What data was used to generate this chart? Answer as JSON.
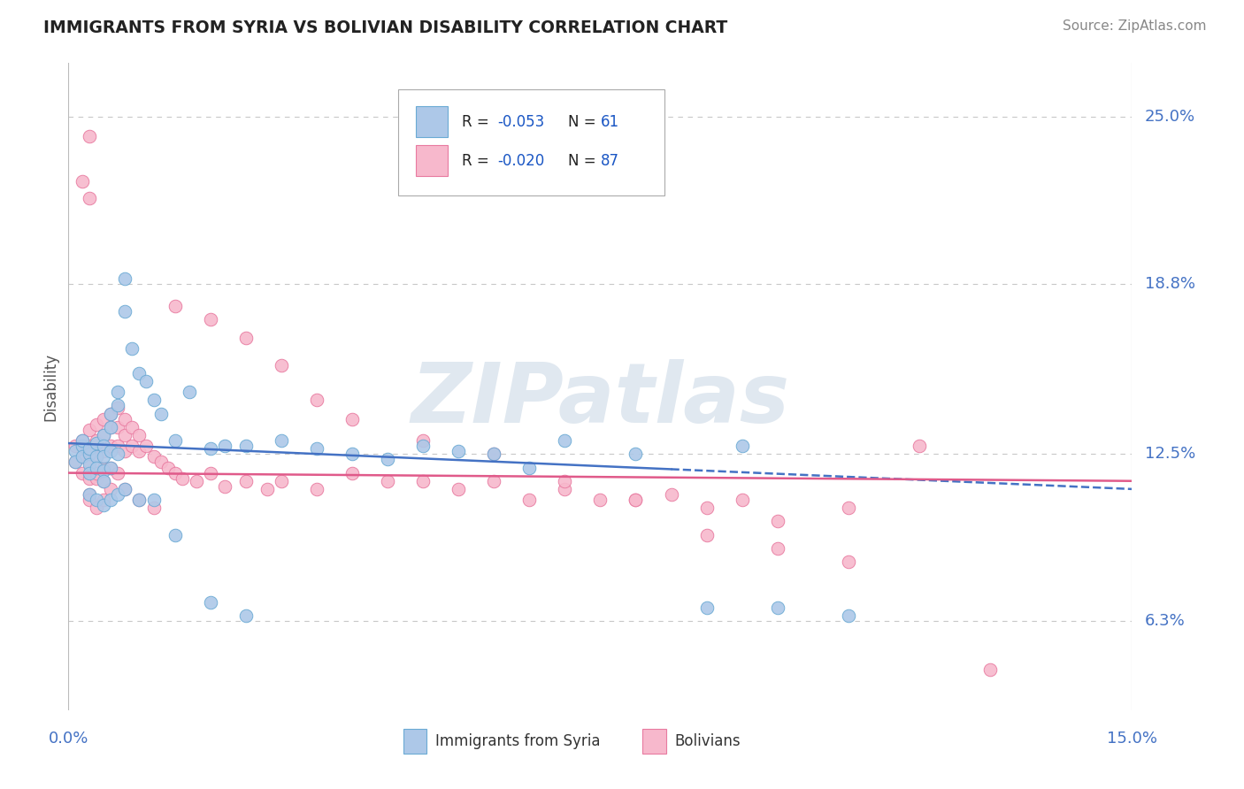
{
  "title": "IMMIGRANTS FROM SYRIA VS BOLIVIAN DISABILITY CORRELATION CHART",
  "source": "Source: ZipAtlas.com",
  "ylabel": "Disability",
  "xlim": [
    0.0,
    0.15
  ],
  "ylim": [
    0.03,
    0.27
  ],
  "ytick_positions": [
    0.063,
    0.125,
    0.188,
    0.25
  ],
  "ytick_labels": [
    "6.3%",
    "12.5%",
    "18.8%",
    "25.0%"
  ],
  "xtick_positions": [
    0.0,
    0.15
  ],
  "xtick_labels": [
    "0.0%",
    "15.0%"
  ],
  "series1_name": "Immigrants from Syria",
  "series1_R": "R = -0.053",
  "series1_N": "N = 61",
  "series1_face_color": "#adc8e8",
  "series1_edge_color": "#6aaad4",
  "series1_line_color": "#4472c4",
  "series2_name": "Bolivians",
  "series2_R": "R = -0.020",
  "series2_N": "N = 87",
  "series2_face_color": "#f7b8cc",
  "series2_edge_color": "#e87aa0",
  "series2_line_color": "#e05a8a",
  "background_color": "#ffffff",
  "grid_color": "#c8c8c8",
  "title_color": "#222222",
  "axis_label_color": "#4472c4",
  "watermark_text": "ZIPatlas",
  "legend_text_color": "#222222",
  "legend_R_color": "#1a56c4",
  "legend_N_color": "#1a56c4",
  "series1_x": [
    0.001,
    0.001,
    0.002,
    0.002,
    0.002,
    0.003,
    0.003,
    0.003,
    0.003,
    0.004,
    0.004,
    0.004,
    0.005,
    0.005,
    0.005,
    0.005,
    0.005,
    0.006,
    0.006,
    0.006,
    0.006,
    0.007,
    0.007,
    0.007,
    0.008,
    0.008,
    0.009,
    0.01,
    0.011,
    0.012,
    0.013,
    0.015,
    0.017,
    0.02,
    0.022,
    0.025,
    0.03,
    0.035,
    0.04,
    0.045,
    0.05,
    0.055,
    0.06,
    0.065,
    0.07,
    0.08,
    0.09,
    0.095,
    0.1,
    0.11,
    0.003,
    0.004,
    0.005,
    0.006,
    0.007,
    0.008,
    0.01,
    0.012,
    0.015,
    0.02,
    0.025
  ],
  "series1_y": [
    0.126,
    0.122,
    0.128,
    0.124,
    0.13,
    0.125,
    0.121,
    0.118,
    0.127,
    0.124,
    0.129,
    0.12,
    0.132,
    0.128,
    0.124,
    0.119,
    0.115,
    0.14,
    0.135,
    0.126,
    0.12,
    0.148,
    0.143,
    0.125,
    0.19,
    0.178,
    0.164,
    0.155,
    0.152,
    0.145,
    0.14,
    0.13,
    0.148,
    0.127,
    0.128,
    0.128,
    0.13,
    0.127,
    0.125,
    0.123,
    0.128,
    0.126,
    0.125,
    0.12,
    0.13,
    0.125,
    0.068,
    0.128,
    0.068,
    0.065,
    0.11,
    0.108,
    0.106,
    0.108,
    0.11,
    0.112,
    0.108,
    0.108,
    0.095,
    0.07,
    0.065
  ],
  "series2_x": [
    0.001,
    0.001,
    0.002,
    0.002,
    0.002,
    0.003,
    0.003,
    0.003,
    0.003,
    0.003,
    0.004,
    0.004,
    0.004,
    0.004,
    0.005,
    0.005,
    0.005,
    0.005,
    0.006,
    0.006,
    0.006,
    0.006,
    0.007,
    0.007,
    0.007,
    0.008,
    0.008,
    0.008,
    0.009,
    0.009,
    0.01,
    0.01,
    0.011,
    0.012,
    0.013,
    0.014,
    0.015,
    0.016,
    0.018,
    0.02,
    0.022,
    0.025,
    0.028,
    0.03,
    0.035,
    0.04,
    0.045,
    0.05,
    0.055,
    0.06,
    0.065,
    0.07,
    0.075,
    0.08,
    0.085,
    0.09,
    0.095,
    0.1,
    0.11,
    0.12,
    0.13,
    0.003,
    0.004,
    0.005,
    0.005,
    0.006,
    0.007,
    0.008,
    0.01,
    0.012,
    0.015,
    0.02,
    0.025,
    0.03,
    0.035,
    0.04,
    0.05,
    0.06,
    0.07,
    0.08,
    0.09,
    0.1,
    0.11,
    0.002,
    0.003,
    0.003,
    0.004
  ],
  "series2_y": [
    0.128,
    0.122,
    0.13,
    0.124,
    0.118,
    0.134,
    0.128,
    0.122,
    0.116,
    0.11,
    0.136,
    0.13,
    0.124,
    0.116,
    0.138,
    0.132,
    0.126,
    0.12,
    0.14,
    0.135,
    0.128,
    0.12,
    0.142,
    0.135,
    0.128,
    0.138,
    0.132,
    0.126,
    0.135,
    0.128,
    0.132,
    0.126,
    0.128,
    0.124,
    0.122,
    0.12,
    0.118,
    0.116,
    0.115,
    0.118,
    0.113,
    0.115,
    0.112,
    0.115,
    0.112,
    0.118,
    0.115,
    0.115,
    0.112,
    0.115,
    0.108,
    0.112,
    0.108,
    0.108,
    0.11,
    0.105,
    0.108,
    0.1,
    0.105,
    0.128,
    0.045,
    0.108,
    0.105,
    0.115,
    0.108,
    0.112,
    0.118,
    0.112,
    0.108,
    0.105,
    0.18,
    0.175,
    0.168,
    0.158,
    0.145,
    0.138,
    0.13,
    0.125,
    0.115,
    0.108,
    0.095,
    0.09,
    0.085,
    0.226,
    0.243,
    0.22,
    0.118
  ],
  "trend1_x0": 0.0,
  "trend1_y0": 0.129,
  "trend1_x1": 0.15,
  "trend1_y1": 0.112,
  "trend2_x0": 0.0,
  "trend2_y0": 0.118,
  "trend2_x1": 0.15,
  "trend2_y1": 0.115
}
